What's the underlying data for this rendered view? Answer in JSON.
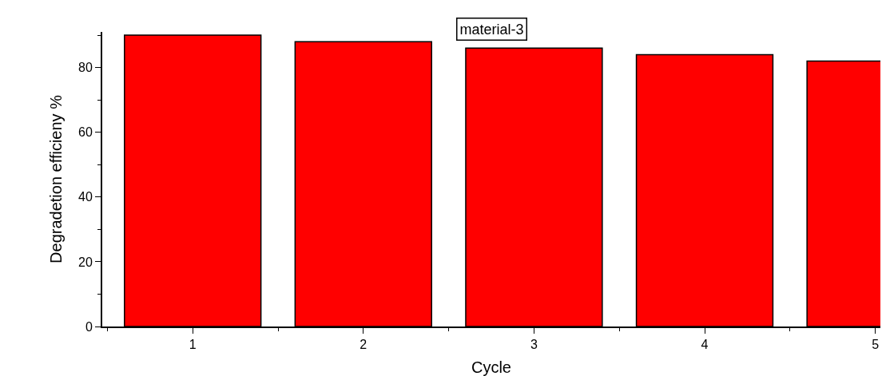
{
  "chart_data": {
    "type": "bar",
    "xlabel": "Cycle",
    "ylabel": "Degradetion efficieny %",
    "x": [
      1,
      2,
      3,
      4,
      5
    ],
    "values": [
      90,
      88,
      86,
      84,
      82
    ],
    "color": "#ff0000",
    "xlim": [
      0.47,
      5.03
    ],
    "xticks": [
      1,
      2,
      3,
      4,
      5
    ],
    "ylim": [
      0,
      91
    ],
    "yticks": [
      0,
      20,
      40,
      60,
      80
    ],
    "annotations": [
      "material-3"
    ]
  }
}
